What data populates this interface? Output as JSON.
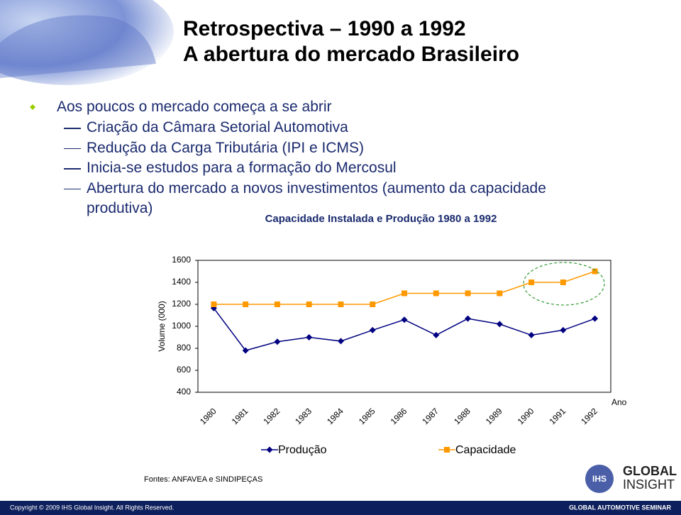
{
  "header": {
    "title_line1": "Retrospectiva – 1990 a 1992",
    "title_line2": "A abertura do mercado Brasileiro"
  },
  "bullets": {
    "main": "Aos poucos o mercado começa a se abrir",
    "sub": [
      "Criação da Câmara Setorial Automotiva",
      "Redução da Carga Tributária (IPI e ICMS)",
      "Inicia-se estudos para a formação do Mercosul",
      "Abertura do mercado a novos investimentos (aumento da capacidade produtiva)"
    ]
  },
  "chart_data": {
    "type": "line",
    "title": "Capacidade Instalada e Produção 1980 a 1992",
    "categories": [
      "1980",
      "1981",
      "1982",
      "1983",
      "1984",
      "1985",
      "1986",
      "1987",
      "1988",
      "1989",
      "1990",
      "1991",
      "1992"
    ],
    "series": [
      {
        "name": "Produção",
        "color": "#000080",
        "marker": "diamond",
        "values": [
          1165,
          780,
          860,
          900,
          865,
          965,
          1060,
          920,
          1070,
          1020,
          920,
          965,
          1070
        ]
      },
      {
        "name": "Capacidade",
        "color": "#ff9900",
        "marker": "square",
        "values": [
          1200,
          1200,
          1200,
          1200,
          1200,
          1200,
          1300,
          1300,
          1300,
          1300,
          1400,
          1400,
          1500
        ]
      }
    ],
    "ylim": [
      400,
      1600
    ],
    "yticks": [
      400,
      600,
      800,
      1000,
      1200,
      1400,
      1600
    ],
    "ylabel": "Volume (000)",
    "xlabel": "Ano",
    "grid": false,
    "legend": "bottom"
  },
  "source": "Fontes: ANFAVEA e SINDIPEÇAS",
  "logo": {
    "mark": "IHS",
    "line1": "GLOBAL",
    "line2": "INSIGHT"
  },
  "footer": {
    "copyright": "Copyright © 2009 IHS Global Insight. All Rights Reserved.",
    "event": "GLOBAL AUTOMOTIVE SEMINAR"
  }
}
